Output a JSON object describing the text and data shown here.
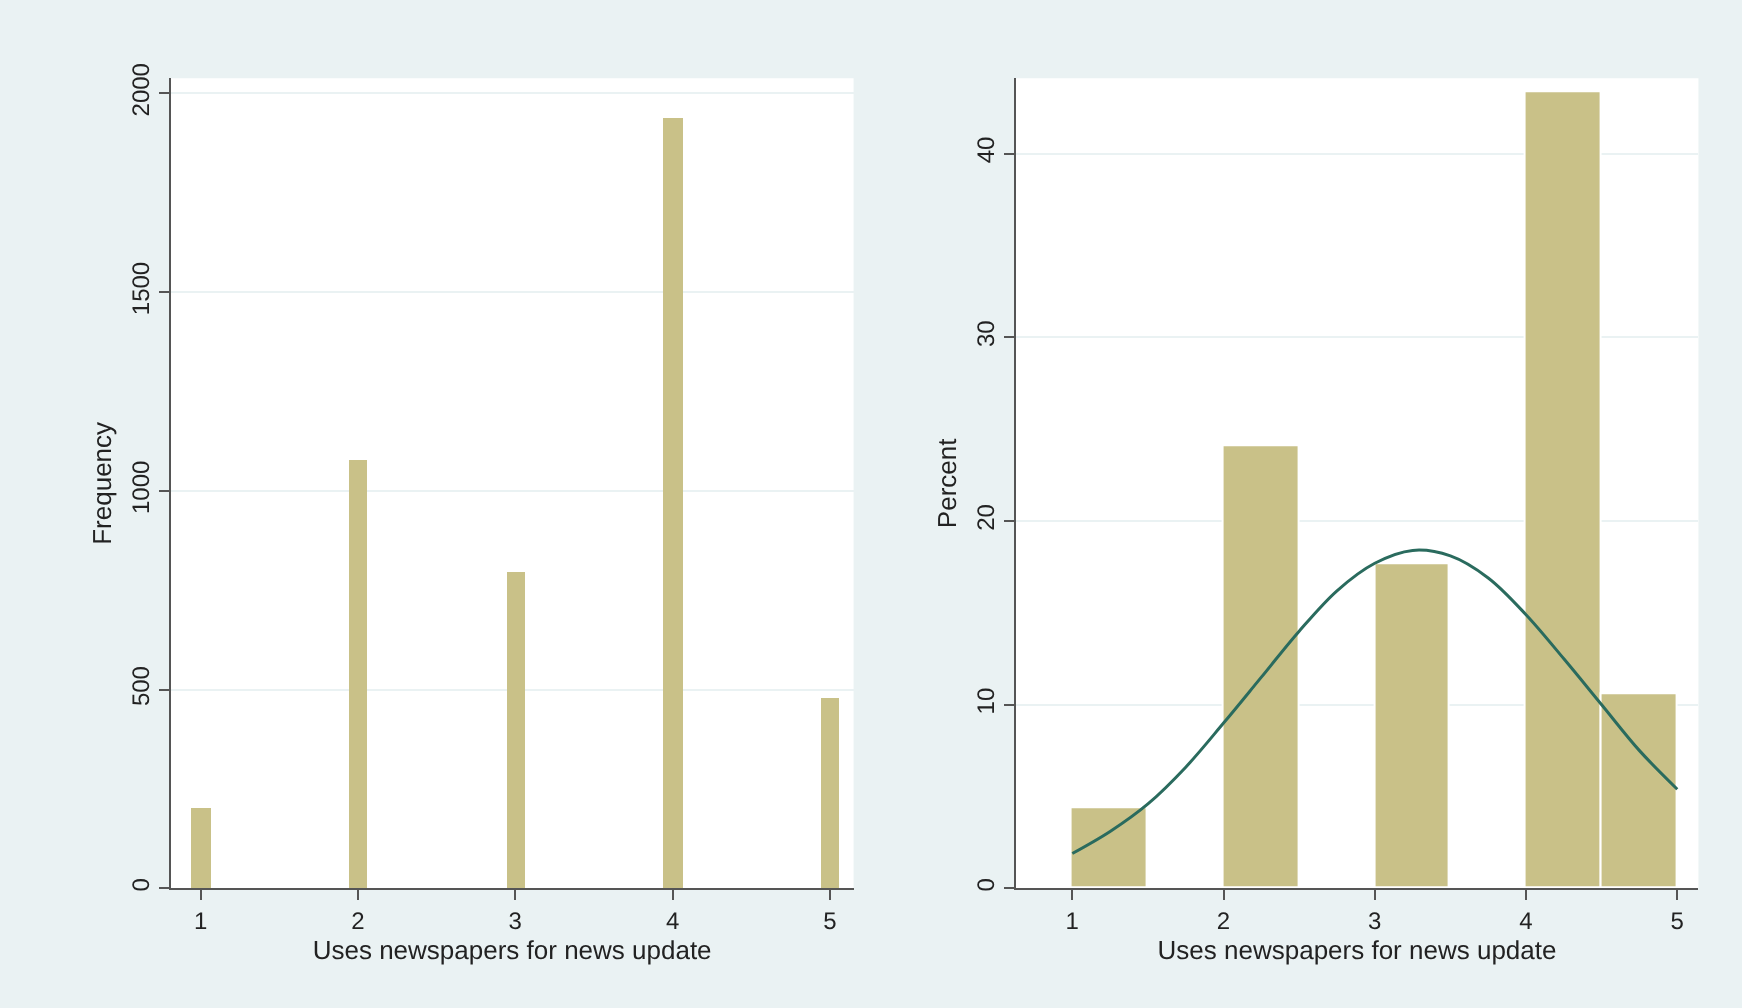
{
  "chart_data": [
    {
      "type": "bar",
      "x": [
        1,
        2,
        3,
        4,
        5
      ],
      "values": [
        203,
        1078,
        797,
        1939,
        476
      ],
      "color": "#c9c188",
      "xlabel": "Uses newspapers for news update",
      "ylabel": "Frequency",
      "xlim": [
        0.81,
        5.15
      ],
      "xticks": [
        1,
        2,
        3,
        4,
        5
      ],
      "ylim": [
        0,
        2038
      ],
      "yticks": [
        0,
        500,
        1000,
        1500,
        2000
      ],
      "grid": "y"
    },
    {
      "type": "histogram",
      "xlabel": "Uses newspapers for news update",
      "ylabel": "Percent",
      "xlim": [
        0.625,
        5.14
      ],
      "xticks": [
        1,
        2,
        3,
        4,
        5
      ],
      "ylim": [
        0,
        44.1
      ],
      "yticks": [
        0,
        10,
        20,
        30,
        40
      ],
      "grid": "y",
      "series": [
        {
          "type": "histogram",
          "bins": [
            1,
            1.5,
            2,
            2.5,
            3,
            3.5,
            4,
            4.5,
            5
          ],
          "values": [
            4.4,
            0,
            24.1,
            0,
            17.7,
            0,
            43.3,
            10.6
          ],
          "color": "#c9c188"
        },
        {
          "type": "line",
          "x": [
            1,
            1.25,
            1.5,
            1.75,
            2,
            2.25,
            2.5,
            2.75,
            3,
            3.25,
            3.5,
            3.75,
            4,
            4.25,
            4.5,
            4.75,
            5
          ],
          "values": [
            1.9,
            3.1,
            4.6,
            6.6,
            9.0,
            11.5,
            14.0,
            16.2,
            17.7,
            18.4,
            18.1,
            16.9,
            14.9,
            12.5,
            10.0,
            7.5,
            5.4
          ],
          "color": "#2a6b5e",
          "marker": "none",
          "line_style": "solid"
        }
      ]
    }
  ]
}
